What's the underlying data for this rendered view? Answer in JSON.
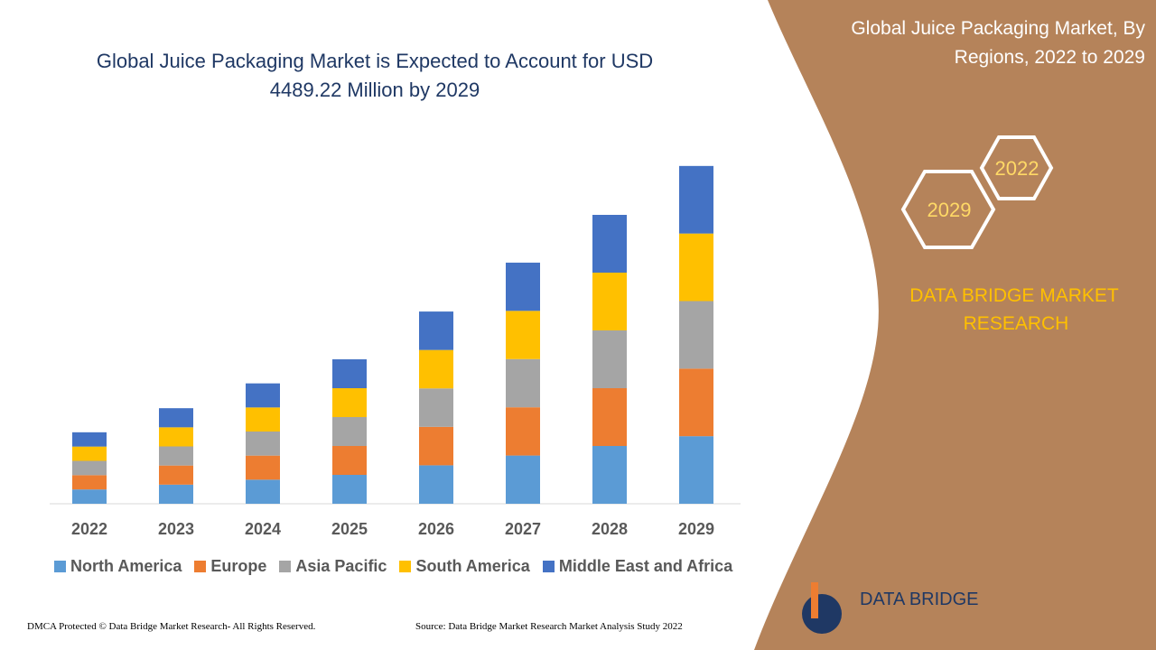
{
  "chart_data": {
    "type": "stacked_bar",
    "title": "Global Juice Packaging Market is Expected to Account for USD 4489.22 Million by 2029",
    "categories": [
      "2022",
      "2023",
      "2024",
      "2025",
      "2026",
      "2027",
      "2028",
      "2029"
    ],
    "series": [
      {
        "name": "North America",
        "color": "#5b9bd5",
        "values": [
          190,
          254,
          320,
          384,
          511,
          641,
          768,
          898
        ]
      },
      {
        "name": "Europe",
        "color": "#ed7d31",
        "values": [
          190,
          254,
          320,
          384,
          511,
          641,
          768,
          898
        ]
      },
      {
        "name": "Asia Pacific",
        "color": "#a5a5a5",
        "values": [
          190,
          254,
          320,
          384,
          511,
          641,
          768,
          898
        ]
      },
      {
        "name": "South America",
        "color": "#ffc000",
        "values": [
          190,
          254,
          320,
          384,
          511,
          641,
          768,
          898
        ]
      },
      {
        "name": "Middle East and Africa",
        "color": "#4472c4",
        "values": [
          190,
          254,
          320,
          384,
          511,
          641,
          768,
          898
        ]
      }
    ],
    "ylim": [
      0,
      4500
    ]
  },
  "panel": {
    "title": [
      "Global Juice Packaging Market, By",
      "Regions, 2022 to 2029"
    ],
    "hex_labels": [
      "2022",
      "2029"
    ],
    "brand": [
      "DATA BRIDGE MARKET",
      "RESEARCH"
    ],
    "logo": "DATA BRIDGE"
  },
  "footer": {
    "left": "DMCA Protected © Data Bridge Market Research- All Rights Reserved.",
    "right": "Source: Data Bridge Market Research Market Analysis Study 2022"
  }
}
